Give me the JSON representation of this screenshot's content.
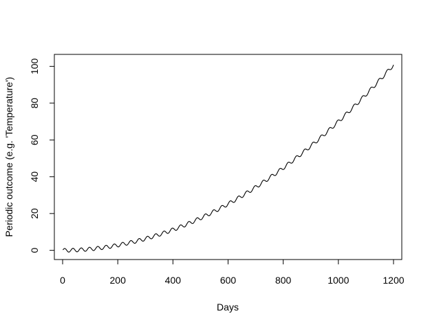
{
  "chart_data": {
    "type": "line",
    "title": "",
    "xlabel": "Days",
    "ylabel": "Periodic outcome (e.g. 'Temperature')",
    "xlim": [
      -30,
      1230
    ],
    "ylim": [
      -5,
      106.5
    ],
    "x_ticks": [
      "0",
      "200",
      "400",
      "600",
      "800",
      "1000",
      "1200"
    ],
    "y_ticks": [
      "0",
      "20",
      "40",
      "60",
      "80",
      "100"
    ],
    "grid": false,
    "legend": "none",
    "series": [
      {
        "x_start": 1,
        "x_end": 1200,
        "x_step": 1,
        "trend": "quadratic",
        "trend_coefficient": 7e-05,
        "oscillation_amplitude": 1,
        "oscillation_period_days": 30,
        "color": "#000000"
      }
    ]
  }
}
